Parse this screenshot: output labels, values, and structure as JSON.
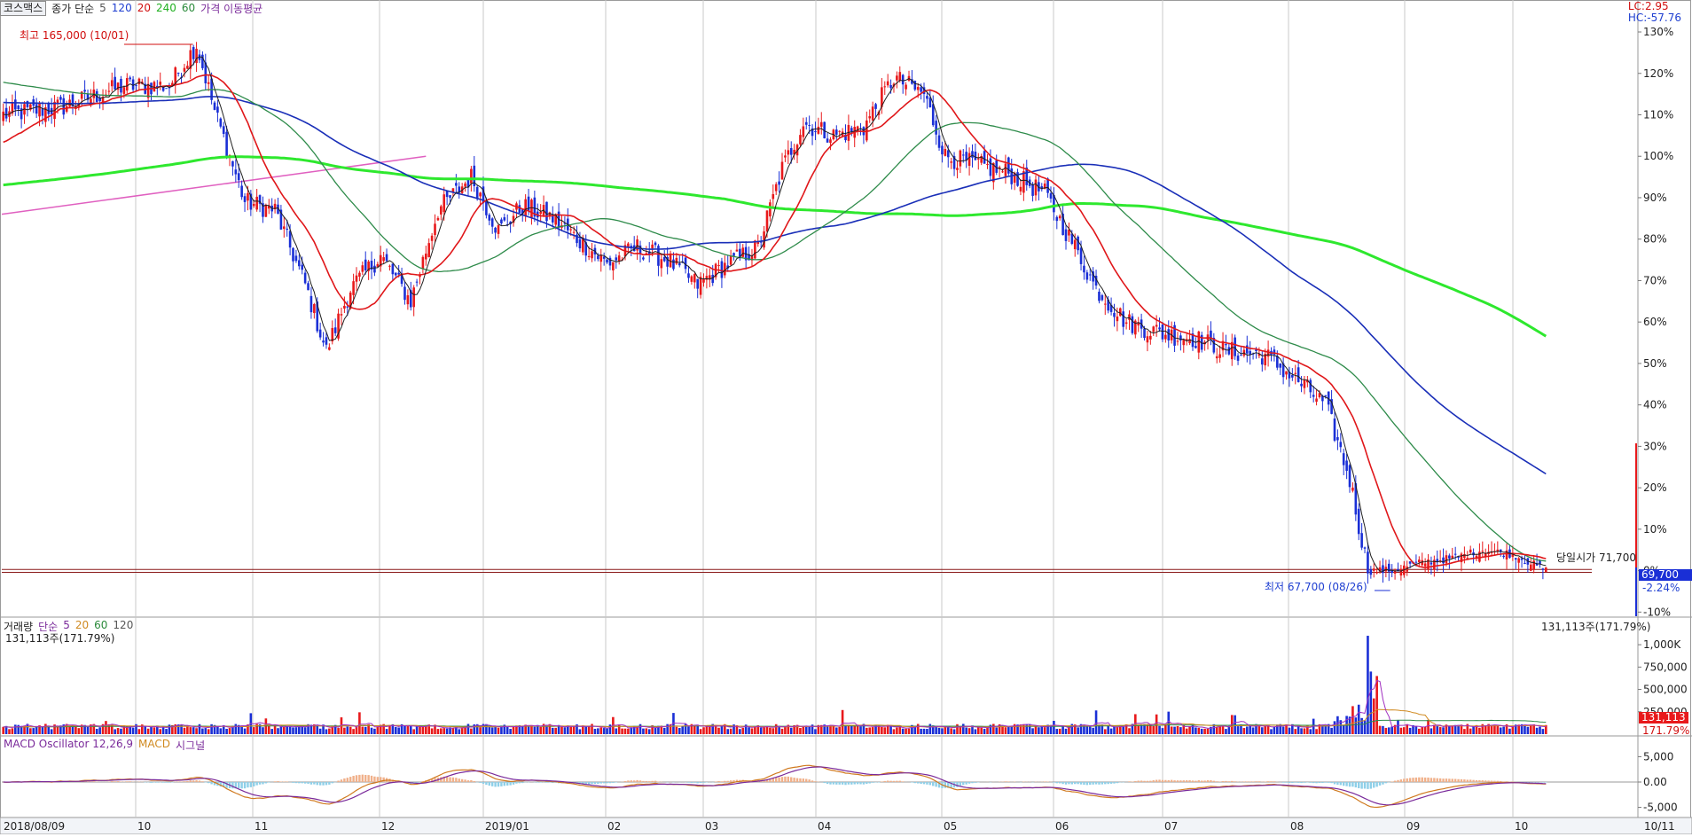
{
  "header": {
    "symbol": "코스맥스",
    "ma_label": "종가 단순",
    "periods": [
      "5",
      "120",
      "20",
      "240",
      "60"
    ],
    "ma_tail": "가격 이동평균",
    "lc": "LC:2.95",
    "hc": "HC:-57.76"
  },
  "annotations": {
    "high": "최고 165,000 (10/01)",
    "low": "최저 67,700 (08/26)",
    "open": "당일시가 71,700",
    "price_tag": "69,700",
    "change_tag": "-2.24%"
  },
  "volume": {
    "header_prefix": "거래량",
    "header_ma": "단순",
    "periods": [
      "5",
      "20",
      "60",
      "120"
    ],
    "subtitle": "131,113주(171.79%)",
    "right_value": "131,113주(171.79%)",
    "tag_value": "131,113",
    "tag_pct": "171.79%",
    "ticks": [
      "1,000K",
      "750,000",
      "500,000",
      "250,000"
    ]
  },
  "macd": {
    "header_osc": "MACD Oscillator 12,26,9",
    "header_macd": "MACD",
    "header_signal": "시그널",
    "ticks": [
      "5,000",
      "0.00",
      "-5,000"
    ]
  },
  "xaxis": [
    "2018/08/09",
    "10",
    "11",
    "12",
    "2019/01",
    "02",
    "03",
    "04",
    "05",
    "06",
    "07",
    "08",
    "09",
    "10",
    "10/11"
  ],
  "colors": {
    "up": "#e8191b",
    "down": "#1a2fd6",
    "ma5": "#202020",
    "ma20": "#e0171a",
    "ma60": "#2e8b4a",
    "ma120": "#1a2fb8",
    "ma240": "#2ee82e",
    "pink": "#e060c0",
    "grid": "#c8c8c8"
  },
  "chart_data": [
    {
      "type": "candlestick",
      "ylabel": "",
      "y_ticks": [
        "130%",
        "120%",
        "110%",
        "100%",
        "90%",
        "80%",
        "70%",
        "60%",
        "50%",
        "40%",
        "30%",
        "20%",
        "10%",
        "0%",
        "-10%"
      ],
      "ylim": [
        -11,
        133
      ],
      "x_period": [
        "2018/08/09",
        "10/11"
      ],
      "close_pct_path": [
        [
          0,
          110
        ],
        [
          20,
          112
        ],
        [
          40,
          117
        ],
        [
          55,
          117
        ],
        [
          64,
          127
        ],
        [
          70,
          111
        ],
        [
          80,
          89
        ],
        [
          90,
          87
        ],
        [
          100,
          69
        ],
        [
          107,
          53
        ],
        [
          115,
          68
        ],
        [
          125,
          76
        ],
        [
          135,
          65
        ],
        [
          144,
          87
        ],
        [
          155,
          95
        ],
        [
          164,
          82
        ],
        [
          172,
          88
        ],
        [
          182,
          85
        ],
        [
          192,
          79
        ],
        [
          200,
          74
        ],
        [
          210,
          78
        ],
        [
          220,
          75
        ],
        [
          230,
          69
        ],
        [
          240,
          74
        ],
        [
          250,
          78
        ],
        [
          258,
          97
        ],
        [
          265,
          108
        ],
        [
          275,
          105
        ],
        [
          285,
          107
        ],
        [
          295,
          119
        ],
        [
          305,
          115
        ],
        [
          312,
          100
        ],
        [
          322,
          98
        ],
        [
          333,
          96
        ],
        [
          345,
          91
        ],
        [
          355,
          78
        ],
        [
          362,
          68
        ],
        [
          372,
          60
        ],
        [
          385,
          57
        ],
        [
          395,
          56
        ],
        [
          405,
          53
        ],
        [
          418,
          52
        ],
        [
          430,
          45
        ],
        [
          438,
          40
        ],
        [
          446,
          22
        ],
        [
          452,
          0
        ],
        [
          460,
          0
        ],
        [
          470,
          2
        ],
        [
          480,
          3
        ],
        [
          490,
          5
        ],
        [
          500,
          4
        ],
        [
          511,
          0
        ]
      ],
      "last_close": 69700,
      "change_pct": -2.24,
      "session_open": 71700,
      "high": {
        "price": 165000,
        "date": "10/01"
      },
      "low": {
        "price": 67700,
        "date": "08/26"
      }
    },
    {
      "type": "bar",
      "name": "거래량",
      "y_ticks": [
        "1,000K",
        "750,000",
        "500,000",
        "250,000"
      ],
      "ylim": [
        0,
        1150000
      ],
      "last": 131113,
      "last_pct": 171.79
    },
    {
      "type": "bar+line",
      "name": "MACD Oscillator 12,26,9",
      "y_ticks": [
        "5,000",
        "0.00",
        "-5,000"
      ],
      "ylim": [
        -7000,
        7000
      ]
    }
  ]
}
